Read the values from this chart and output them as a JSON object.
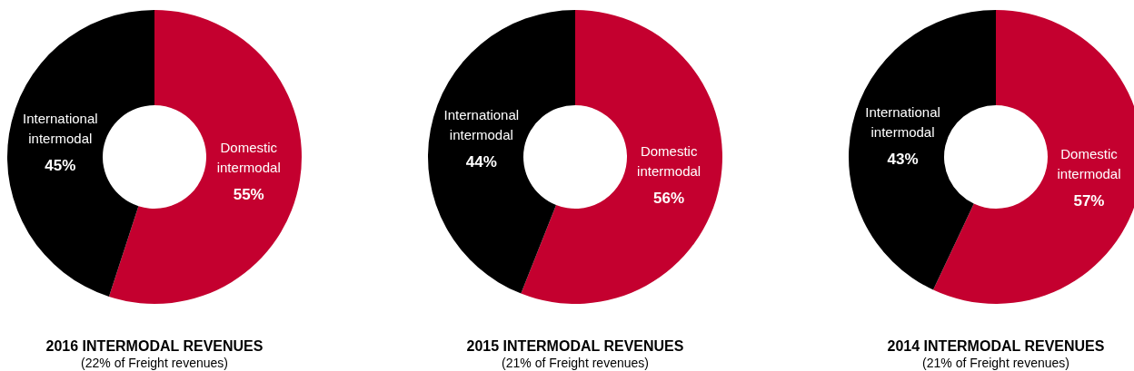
{
  "chart_data": [
    {
      "type": "donut",
      "title": "2016 INTERMODAL REVENUES",
      "subtitle": "(22% of Freight revenues)",
      "categories": [
        "Domestic intermodal",
        "International intermodal"
      ],
      "values": [
        55,
        45
      ],
      "value_labels": [
        "55%",
        "45%"
      ],
      "colors": [
        "#c4002f",
        "#000000"
      ]
    },
    {
      "type": "donut",
      "title": "2015 INTERMODAL REVENUES",
      "subtitle": "(21% of Freight revenues)",
      "categories": [
        "Domestic intermodal",
        "International intermodal"
      ],
      "values": [
        56,
        44
      ],
      "value_labels": [
        "56%",
        "44%"
      ],
      "colors": [
        "#c4002f",
        "#000000"
      ]
    },
    {
      "type": "donut",
      "title": "2014 INTERMODAL REVENUES",
      "subtitle": "(21% of Freight revenues)",
      "categories": [
        "Domestic intermodal",
        "International intermodal"
      ],
      "values": [
        57,
        43
      ],
      "value_labels": [
        "57%",
        "43%"
      ],
      "colors": [
        "#c4002f",
        "#000000"
      ]
    }
  ]
}
